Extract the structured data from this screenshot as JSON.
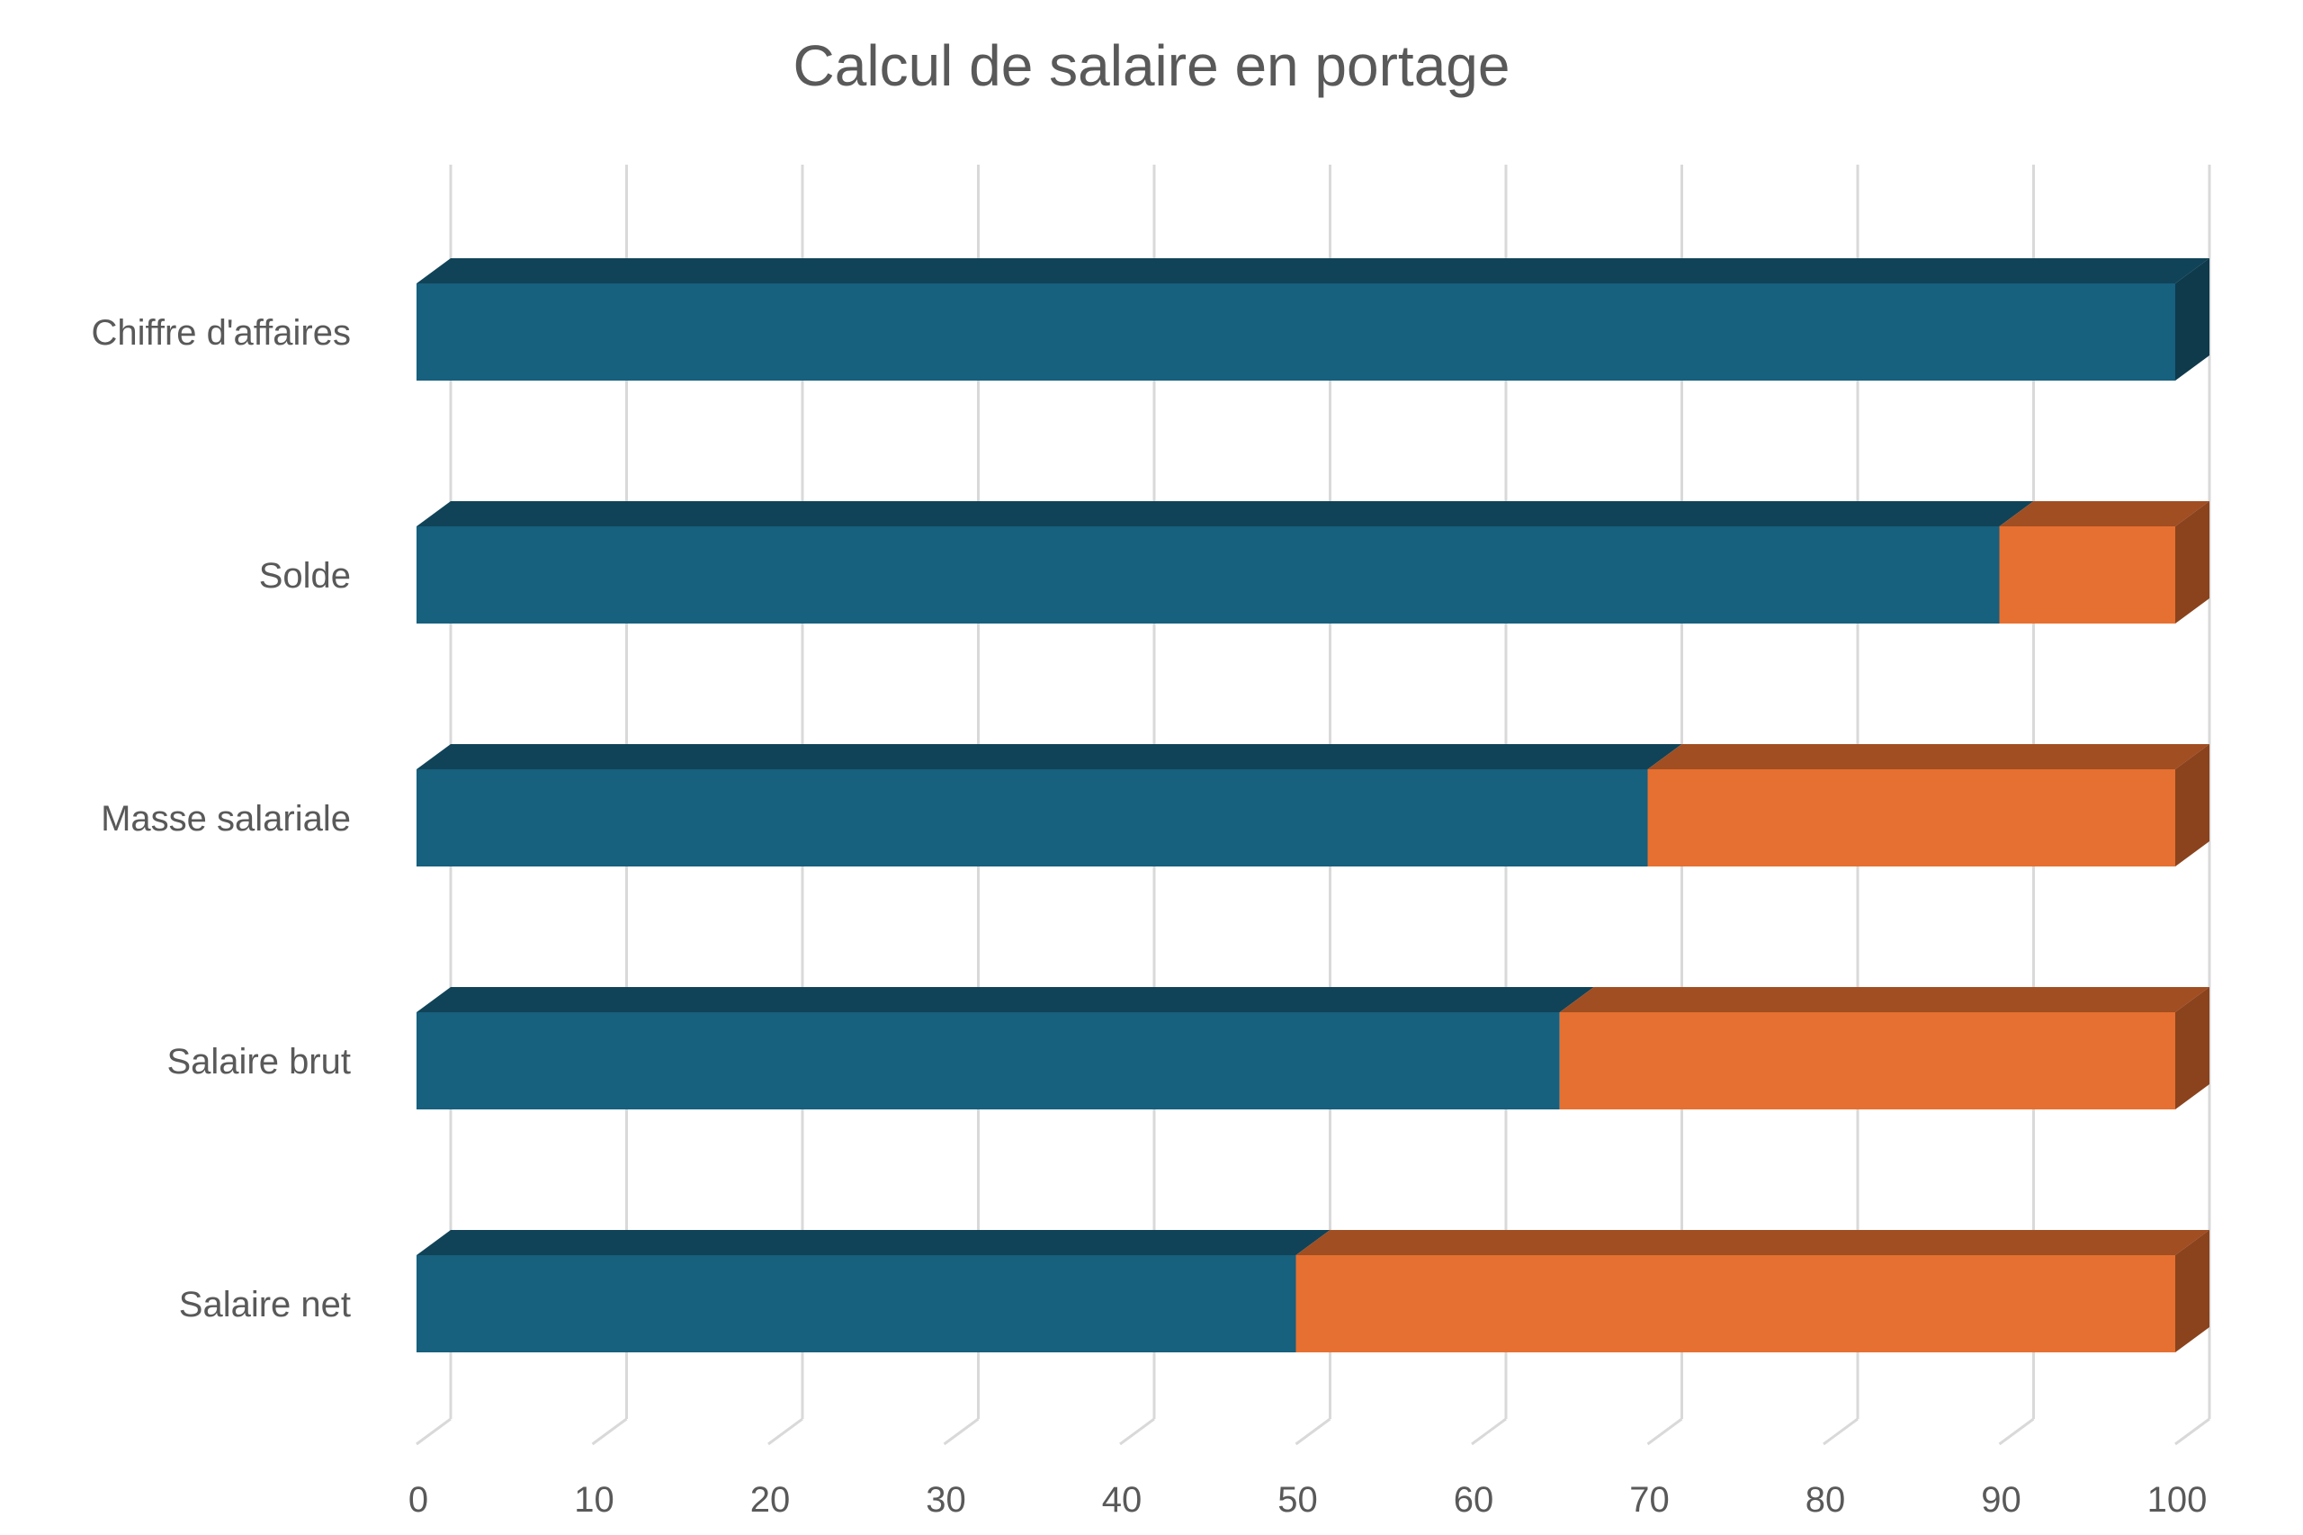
{
  "chart_data": {
    "type": "bar",
    "orientation": "horizontal",
    "stacked": true,
    "three_d": true,
    "title": "Calcul de salaire en portage",
    "xlabel": "",
    "ylabel": "",
    "categories": [
      "Chiffre d'affaires",
      "Solde",
      "Masse salariale",
      "Salaire brut",
      "Salaire net"
    ],
    "series": [
      {
        "color": "#17607E",
        "values": [
          100,
          90,
          70,
          65,
          50
        ]
      },
      {
        "color": "#E67031",
        "values": [
          0,
          10,
          30,
          35,
          50
        ]
      }
    ],
    "xlim": [
      0,
      100
    ],
    "xticks": [
      "0",
      "10",
      "20",
      "30",
      "40",
      "50",
      "60",
      "70",
      "80",
      "90",
      "100"
    ],
    "grid": true,
    "legend": "none"
  }
}
